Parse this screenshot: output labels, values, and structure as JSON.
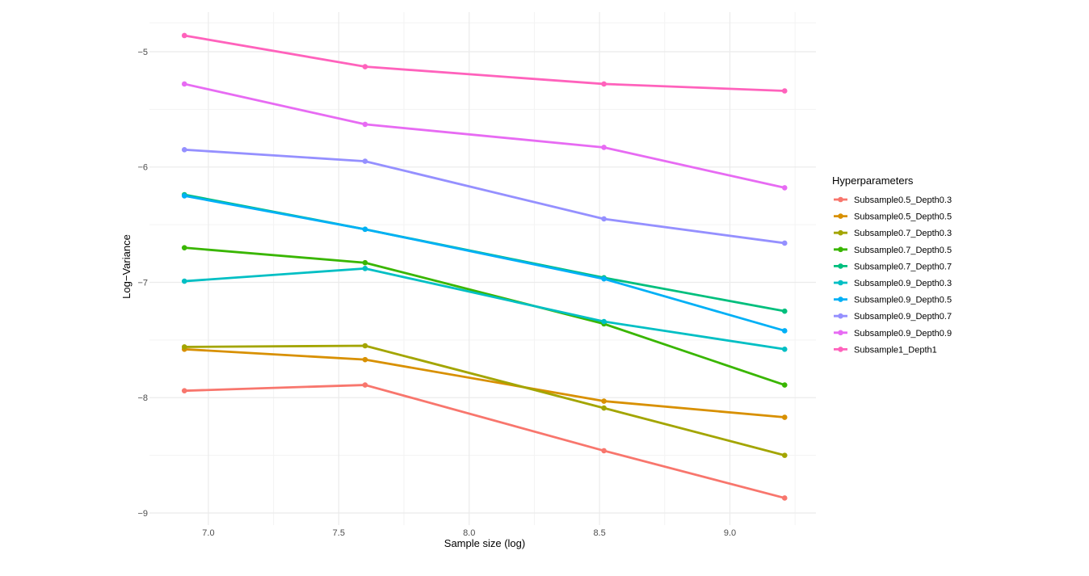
{
  "chart_data": {
    "type": "line",
    "title": "",
    "xlabel": "Sample size (log)",
    "ylabel": "Log−Variance",
    "xlim": [
      6.774,
      9.33
    ],
    "ylim": [
      -9.105,
      -4.657
    ],
    "xticks": [
      "7.0",
      "7.5",
      "8.0",
      "8.5",
      "9.0"
    ],
    "xtick_values": [
      7.0,
      7.5,
      8.0,
      8.5,
      9.0
    ],
    "yticks": [
      "−5",
      "−6",
      "−7",
      "−8",
      "−9"
    ],
    "ytick_values": [
      -5,
      -6,
      -7,
      -8,
      -9
    ],
    "grid": true,
    "legend_title": "Hyperparameters",
    "legend_position": "right",
    "x": [
      6.908,
      7.601,
      8.517,
      9.21
    ],
    "series": [
      {
        "name": "Subsample0.5_Depth0.3",
        "color": "#F8766D",
        "values": [
          -7.94,
          -7.89,
          -8.46,
          -8.87
        ]
      },
      {
        "name": "Subsample0.5_Depth0.5",
        "color": "#D89000",
        "values": [
          -7.58,
          -7.67,
          -8.03,
          -8.17
        ]
      },
      {
        "name": "Subsample0.7_Depth0.3",
        "color": "#A3A500",
        "values": [
          -7.56,
          -7.55,
          -8.09,
          -8.5
        ]
      },
      {
        "name": "Subsample0.7_Depth0.5",
        "color": "#39B600",
        "values": [
          -6.7,
          -6.83,
          -7.36,
          -7.89
        ]
      },
      {
        "name": "Subsample0.7_Depth0.7",
        "color": "#00BF7D",
        "values": [
          -6.24,
          -6.54,
          -6.96,
          -7.25
        ]
      },
      {
        "name": "Subsample0.9_Depth0.3",
        "color": "#00BFC4",
        "values": [
          -6.99,
          -6.88,
          -7.34,
          -7.58
        ]
      },
      {
        "name": "Subsample0.9_Depth0.5",
        "color": "#00B0F6",
        "values": [
          -6.25,
          -6.54,
          -6.97,
          -7.42
        ]
      },
      {
        "name": "Subsample0.9_Depth0.7",
        "color": "#9590FF",
        "values": [
          -5.85,
          -5.95,
          -6.45,
          -6.66
        ]
      },
      {
        "name": "Subsample0.9_Depth0.9",
        "color": "#E76BF3",
        "values": [
          -5.28,
          -5.63,
          -5.83,
          -6.18
        ]
      },
      {
        "name": "Subsample1_Depth1",
        "color": "#FF62BC",
        "values": [
          -4.86,
          -5.13,
          -5.28,
          -5.34
        ]
      }
    ]
  }
}
